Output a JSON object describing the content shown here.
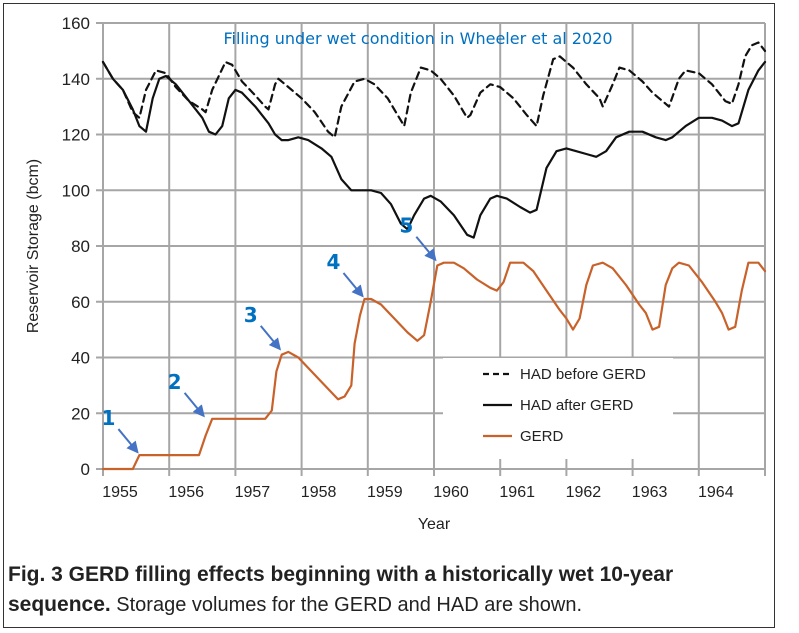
{
  "chart_data": {
    "type": "line",
    "title": "Filling under wet condition in Wheeler et al 2020",
    "xlabel": "Year",
    "ylabel": "Reservoir Storage (bcm)",
    "xlim": [
      1955,
      1965
    ],
    "ylim": [
      0,
      160
    ],
    "xticks": [
      "1955",
      "1956",
      "1957",
      "1958",
      "1959",
      "1960",
      "1961",
      "1962",
      "1963",
      "1964"
    ],
    "yticks": [
      "0",
      "20",
      "40",
      "60",
      "80",
      "100",
      "120",
      "140",
      "160"
    ],
    "grid": true,
    "legend_position": "center-right",
    "legend": [
      {
        "label": "HAD before GERD",
        "style": "dashed",
        "color": "#111111"
      },
      {
        "label": "HAD after GERD",
        "style": "solid",
        "color": "#111111"
      },
      {
        "label": "GERD",
        "style": "solid",
        "color": "#C8622A"
      }
    ],
    "series": [
      {
        "name": "HAD before GERD",
        "style": "dashed",
        "color": "#111111",
        "points": [
          [
            1955.0,
            146
          ],
          [
            1955.15,
            140
          ],
          [
            1955.3,
            136
          ],
          [
            1955.45,
            128
          ],
          [
            1955.55,
            126
          ],
          [
            1955.65,
            136
          ],
          [
            1955.8,
            143
          ],
          [
            1955.95,
            142
          ],
          [
            1956.1,
            137
          ],
          [
            1956.3,
            132
          ],
          [
            1956.5,
            129
          ],
          [
            1956.55,
            128
          ],
          [
            1956.65,
            136
          ],
          [
            1956.85,
            146
          ],
          [
            1956.95,
            145
          ],
          [
            1957.1,
            139
          ],
          [
            1957.3,
            134
          ],
          [
            1957.45,
            130
          ],
          [
            1957.5,
            129
          ],
          [
            1957.6,
            138
          ],
          [
            1957.65,
            140
          ],
          [
            1957.8,
            137
          ],
          [
            1958.0,
            133
          ],
          [
            1958.2,
            128
          ],
          [
            1958.4,
            121
          ],
          [
            1958.5,
            119
          ],
          [
            1958.6,
            130
          ],
          [
            1958.8,
            139
          ],
          [
            1958.95,
            140
          ],
          [
            1959.1,
            138
          ],
          [
            1959.3,
            133
          ],
          [
            1959.45,
            127
          ],
          [
            1959.55,
            123
          ],
          [
            1959.65,
            135
          ],
          [
            1959.8,
            144
          ],
          [
            1959.95,
            143
          ],
          [
            1960.1,
            140
          ],
          [
            1960.3,
            134
          ],
          [
            1960.5,
            126
          ],
          [
            1960.55,
            127
          ],
          [
            1960.7,
            135
          ],
          [
            1960.85,
            138
          ],
          [
            1961.0,
            137
          ],
          [
            1961.2,
            133
          ],
          [
            1961.4,
            127
          ],
          [
            1961.55,
            123
          ],
          [
            1961.65,
            134
          ],
          [
            1961.8,
            147
          ],
          [
            1961.9,
            148
          ],
          [
            1962.1,
            144
          ],
          [
            1962.3,
            138
          ],
          [
            1962.5,
            133
          ],
          [
            1962.55,
            130
          ],
          [
            1962.7,
            138
          ],
          [
            1962.8,
            144
          ],
          [
            1962.95,
            143
          ],
          [
            1963.15,
            139
          ],
          [
            1963.3,
            135
          ],
          [
            1963.5,
            131
          ],
          [
            1963.55,
            130
          ],
          [
            1963.7,
            140
          ],
          [
            1963.8,
            143
          ],
          [
            1964.0,
            142
          ],
          [
            1964.2,
            138
          ],
          [
            1964.4,
            132
          ],
          [
            1964.5,
            131
          ],
          [
            1964.6,
            138
          ],
          [
            1964.7,
            148
          ],
          [
            1964.8,
            152
          ],
          [
            1964.9,
            153
          ],
          [
            1965.0,
            150
          ]
        ]
      },
      {
        "name": "HAD after GERD",
        "style": "solid",
        "color": "#111111",
        "points": [
          [
            1955.0,
            146
          ],
          [
            1955.15,
            140
          ],
          [
            1955.3,
            136
          ],
          [
            1955.45,
            129
          ],
          [
            1955.55,
            123
          ],
          [
            1955.65,
            121
          ],
          [
            1955.75,
            133
          ],
          [
            1955.85,
            140
          ],
          [
            1955.95,
            141
          ],
          [
            1956.1,
            138
          ],
          [
            1956.3,
            132
          ],
          [
            1956.5,
            126
          ],
          [
            1956.6,
            121
          ],
          [
            1956.7,
            120
          ],
          [
            1956.8,
            123
          ],
          [
            1956.9,
            133
          ],
          [
            1957.0,
            136
          ],
          [
            1957.1,
            135
          ],
          [
            1957.3,
            130
          ],
          [
            1957.5,
            124
          ],
          [
            1957.6,
            120
          ],
          [
            1957.7,
            118
          ],
          [
            1957.8,
            118
          ],
          [
            1957.95,
            119
          ],
          [
            1958.1,
            118
          ],
          [
            1958.3,
            115
          ],
          [
            1958.45,
            112
          ],
          [
            1958.6,
            104
          ],
          [
            1958.75,
            100
          ],
          [
            1958.9,
            100
          ],
          [
            1959.05,
            100
          ],
          [
            1959.2,
            99
          ],
          [
            1959.35,
            95
          ],
          [
            1959.5,
            88
          ],
          [
            1959.6,
            86
          ],
          [
            1959.7,
            91
          ],
          [
            1959.85,
            97
          ],
          [
            1959.95,
            98
          ],
          [
            1960.1,
            96
          ],
          [
            1960.3,
            91
          ],
          [
            1960.5,
            84
          ],
          [
            1960.6,
            83
          ],
          [
            1960.7,
            91
          ],
          [
            1960.85,
            97
          ],
          [
            1960.95,
            98
          ],
          [
            1961.1,
            97
          ],
          [
            1961.3,
            94
          ],
          [
            1961.45,
            92
          ],
          [
            1961.55,
            93
          ],
          [
            1961.7,
            108
          ],
          [
            1961.85,
            114
          ],
          [
            1962.0,
            115
          ],
          [
            1962.15,
            114
          ],
          [
            1962.3,
            113
          ],
          [
            1962.45,
            112
          ],
          [
            1962.6,
            114
          ],
          [
            1962.75,
            119
          ],
          [
            1962.95,
            121
          ],
          [
            1963.15,
            121
          ],
          [
            1963.35,
            119
          ],
          [
            1963.5,
            118
          ],
          [
            1963.6,
            119
          ],
          [
            1963.8,
            123
          ],
          [
            1964.0,
            126
          ],
          [
            1964.2,
            126
          ],
          [
            1964.35,
            125
          ],
          [
            1964.5,
            123
          ],
          [
            1964.6,
            124
          ],
          [
            1964.75,
            136
          ],
          [
            1964.9,
            143
          ],
          [
            1965.0,
            146
          ]
        ]
      },
      {
        "name": "GERD",
        "style": "solid",
        "color": "#C8622A",
        "points": [
          [
            1955.0,
            0
          ],
          [
            1955.45,
            0
          ],
          [
            1955.55,
            5
          ],
          [
            1956.0,
            5
          ],
          [
            1956.45,
            5
          ],
          [
            1956.55,
            12
          ],
          [
            1956.65,
            18
          ],
          [
            1957.0,
            18
          ],
          [
            1957.45,
            18
          ],
          [
            1957.55,
            21
          ],
          [
            1957.62,
            35
          ],
          [
            1957.7,
            41
          ],
          [
            1957.8,
            42
          ],
          [
            1957.95,
            40
          ],
          [
            1958.15,
            35
          ],
          [
            1958.35,
            30
          ],
          [
            1958.55,
            25
          ],
          [
            1958.65,
            26
          ],
          [
            1958.75,
            30
          ],
          [
            1958.8,
            45
          ],
          [
            1958.88,
            55
          ],
          [
            1958.95,
            61
          ],
          [
            1959.05,
            61
          ],
          [
            1959.2,
            59
          ],
          [
            1959.4,
            54
          ],
          [
            1959.6,
            49
          ],
          [
            1959.75,
            46
          ],
          [
            1959.85,
            48
          ],
          [
            1959.95,
            60
          ],
          [
            1960.05,
            73
          ],
          [
            1960.15,
            74
          ],
          [
            1960.3,
            74
          ],
          [
            1960.45,
            72
          ],
          [
            1960.65,
            68
          ],
          [
            1960.85,
            65
          ],
          [
            1960.95,
            64
          ],
          [
            1961.05,
            67
          ],
          [
            1961.15,
            74
          ],
          [
            1961.35,
            74
          ],
          [
            1961.5,
            71
          ],
          [
            1961.7,
            64
          ],
          [
            1961.9,
            57
          ],
          [
            1962.0,
            54
          ],
          [
            1962.1,
            50
          ],
          [
            1962.2,
            54
          ],
          [
            1962.3,
            66
          ],
          [
            1962.4,
            73
          ],
          [
            1962.55,
            74
          ],
          [
            1962.7,
            72
          ],
          [
            1962.9,
            66
          ],
          [
            1963.1,
            59
          ],
          [
            1963.2,
            56
          ],
          [
            1963.3,
            50
          ],
          [
            1963.4,
            51
          ],
          [
            1963.5,
            66
          ],
          [
            1963.6,
            72
          ],
          [
            1963.7,
            74
          ],
          [
            1963.85,
            73
          ],
          [
            1964.05,
            67
          ],
          [
            1964.25,
            60
          ],
          [
            1964.35,
            56
          ],
          [
            1964.45,
            50
          ],
          [
            1964.55,
            51
          ],
          [
            1964.65,
            64
          ],
          [
            1964.75,
            74
          ],
          [
            1964.9,
            74
          ],
          [
            1965.0,
            71
          ]
        ]
      }
    ],
    "annotations": [
      {
        "label": "1",
        "target": [
          1955.55,
          5
        ]
      },
      {
        "label": "2",
        "target": [
          1956.55,
          18
        ]
      },
      {
        "label": "3",
        "target": [
          1957.7,
          42
        ]
      },
      {
        "label": "4",
        "target": [
          1958.95,
          61
        ]
      },
      {
        "label": "5",
        "target": [
          1960.05,
          74
        ]
      }
    ],
    "annotation_color": "#4472C4",
    "title_color": "#0070C0"
  },
  "caption": {
    "bold": "Fig. 3 GERD filling effects beginning with a historically wet 10-year sequence.",
    "bold_line1": "Fig. 3 GERD filling effects beginning with a historically wet 10-year",
    "bold_line2": "sequence.",
    "normal": " Storage volumes for the GERD and HAD are shown."
  }
}
